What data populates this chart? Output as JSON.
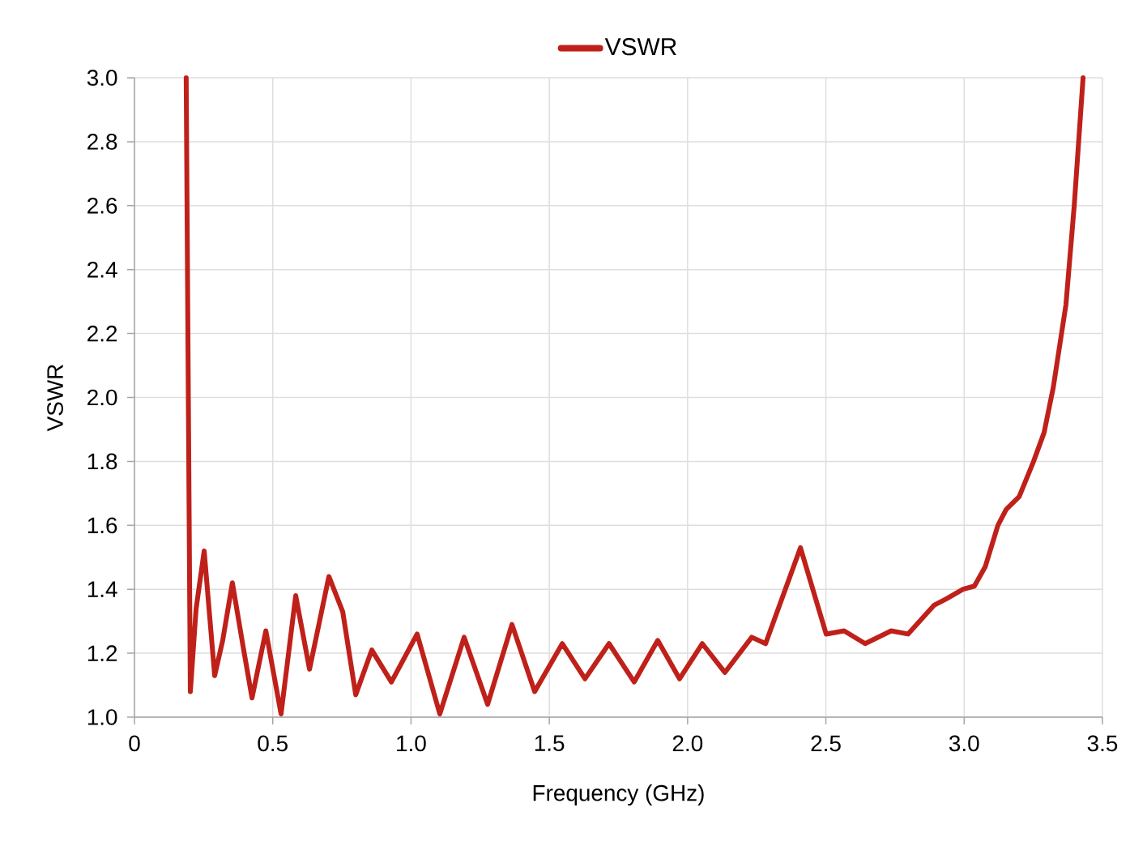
{
  "chart_data": {
    "type": "line",
    "xlabel": "Frequency (GHz)",
    "ylabel": "VSWR",
    "x": [
      0.187,
      0.202,
      0.223,
      0.252,
      0.29,
      0.319,
      0.354,
      0.393,
      0.425,
      0.475,
      0.53,
      0.583,
      0.633,
      0.703,
      0.753,
      0.8,
      0.858,
      0.929,
      1.022,
      1.104,
      1.192,
      1.277,
      1.365,
      1.447,
      1.547,
      1.629,
      1.716,
      1.807,
      1.892,
      1.971,
      2.053,
      2.135,
      2.232,
      2.282,
      2.408,
      2.501,
      2.566,
      2.642,
      2.736,
      2.797,
      2.891,
      2.935,
      2.996,
      3.037,
      3.076,
      3.122,
      3.152,
      3.199,
      3.251,
      3.289,
      3.322,
      3.368,
      3.398,
      3.43
    ],
    "series": [
      {
        "name": "VSWR",
        "color": "#bf211a",
        "values": [
          3.0,
          1.08,
          1.34,
          1.52,
          1.13,
          1.24,
          1.42,
          1.22,
          1.06,
          1.27,
          1.01,
          1.38,
          1.15,
          1.44,
          1.33,
          1.07,
          1.21,
          1.11,
          1.26,
          1.01,
          1.25,
          1.04,
          1.29,
          1.08,
          1.23,
          1.12,
          1.23,
          1.11,
          1.24,
          1.12,
          1.23,
          1.14,
          1.25,
          1.23,
          1.53,
          1.26,
          1.27,
          1.23,
          1.27,
          1.26,
          1.35,
          1.37,
          1.4,
          1.41,
          1.47,
          1.6,
          1.65,
          1.69,
          1.8,
          1.89,
          2.03,
          2.29,
          2.6,
          3.0
        ]
      }
    ],
    "xlim": [
      0,
      3.5
    ],
    "ylim": [
      1.0,
      3.0
    ],
    "xticks": [
      0,
      0.5,
      {
        "value": 1,
        "label": "1.0"
      },
      1.5,
      {
        "value": 2,
        "label": "2.0"
      },
      2.5,
      {
        "value": 3,
        "label": "3.0"
      },
      3.5
    ],
    "yticks": [
      {
        "value": 1,
        "label": "1.0"
      },
      1.2,
      1.4,
      1.6,
      1.8,
      {
        "value": 2,
        "label": "2.0"
      },
      2.2,
      2.4,
      2.6,
      2.8,
      {
        "value": 3,
        "label": "3.0"
      }
    ],
    "grid": true,
    "legend": "top",
    "line_style": "solid",
    "marker": "none"
  }
}
